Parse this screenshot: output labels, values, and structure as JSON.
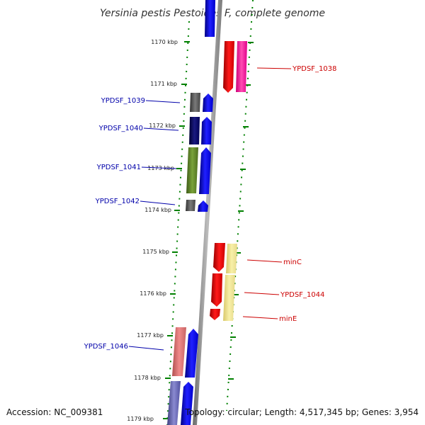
{
  "title": "Yersinia pestis Pestoides F, complete genome",
  "footer": {
    "accession": "Accession: NC_009381",
    "topology": "Topology: circular; Length: 4,517,345 bp; Genes: 3,954"
  },
  "axis_ticks": [
    "1170 kbp",
    "1171 kbp",
    "1172 kbp",
    "1173 kbp",
    "1174 kbp",
    "1175 kbp",
    "1176 kbp",
    "1177 kbp",
    "1178 kbp",
    "1179 kbp"
  ],
  "left_genes": [
    "YPDSF_1039",
    "YPDSF_1040",
    "YPDSF_1041",
    "YPDSF_1042",
    "YPDSF_1046"
  ],
  "right_genes": [
    "YPDSF_1038",
    "minC",
    "YPDSF_1044",
    "minE"
  ],
  "colors": {
    "forward_gene": "#0000ff",
    "reverse_gene": "#ff0000",
    "left_label": "#0000aa",
    "right_label": "#cc0000",
    "tick_marks": "#008000",
    "backbone": "#888888"
  }
}
